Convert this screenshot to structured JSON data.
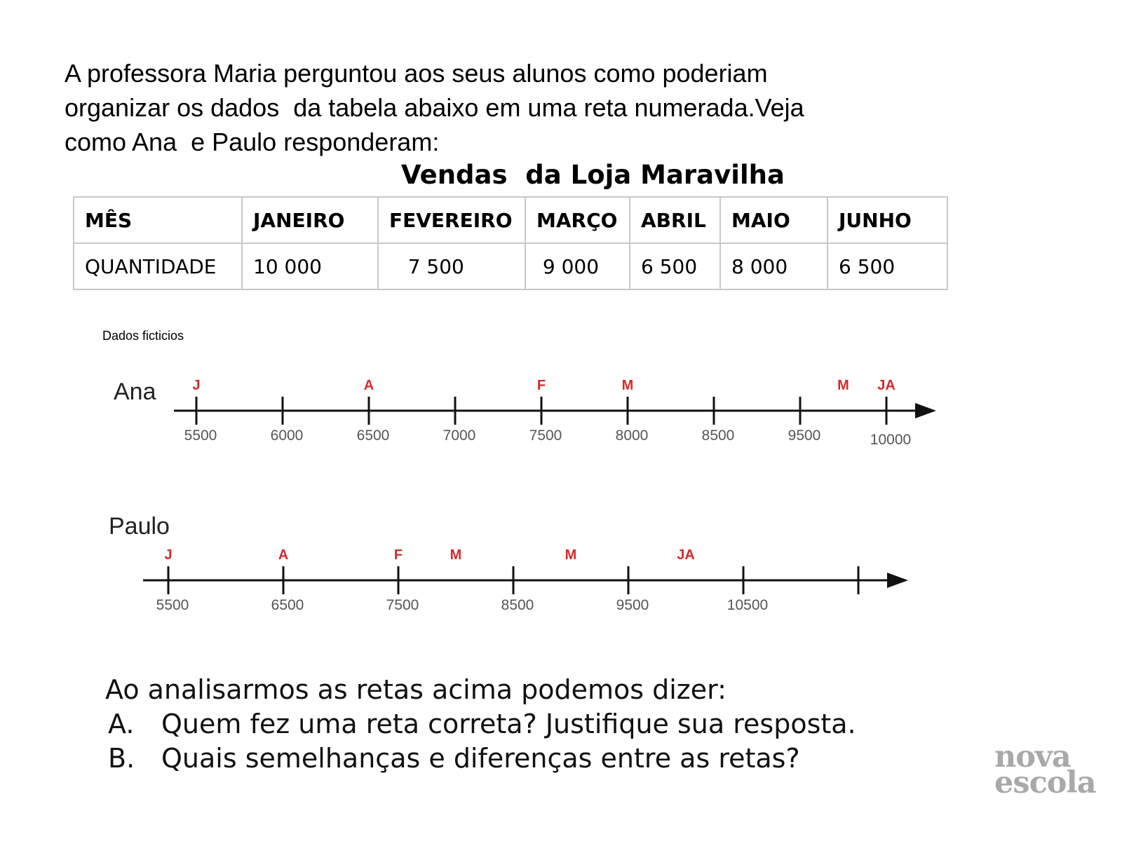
{
  "intro": {
    "lines": [
      "A professora Maria perguntou aos seus alunos como poderiam",
      "organizar os dados  da tabela abaixo em uma reta numerada.Veja",
      "como Ana  e Paulo responderam:"
    ]
  },
  "table": {
    "title": "Vendas  da Loja Maravilha",
    "header": [
      "MÊS",
      "JANEIRO",
      "FEVEREIRO",
      "MARÇO",
      "ABRIL",
      "MAIO",
      "JUNHO"
    ],
    "row": [
      "QUANTIDADE",
      "10 000",
      "   7 500",
      " 9 000",
      "6 500",
      "8 000",
      "6 500"
    ]
  },
  "note": "Dados ficticios",
  "ana": {
    "name": "Ana",
    "ticks": [
      "5500",
      "6000",
      "6500",
      "7000",
      "7500",
      "8000",
      "8500",
      "9500",
      "10000"
    ],
    "markers": [
      {
        "label": "J",
        "tick": 0
      },
      {
        "label": "A",
        "tick": 2
      },
      {
        "label": "F",
        "tick": 4
      },
      {
        "label": "M",
        "tick": 5
      },
      {
        "label": "M",
        "tick": 7.5
      },
      {
        "label": "JA",
        "tick": 8
      }
    ]
  },
  "paulo": {
    "name": "Paulo",
    "ticks": [
      "5500",
      "6500",
      "7500",
      "8500",
      "9500",
      "10500",
      ""
    ],
    "markers": [
      {
        "label": "J",
        "tick": 0
      },
      {
        "label": "A",
        "tick": 1
      },
      {
        "label": "F",
        "tick": 2
      },
      {
        "label": "M",
        "tick": 2.5
      },
      {
        "label": "M",
        "tick": 3.5
      },
      {
        "label": "JA",
        "tick": 4.5
      }
    ]
  },
  "questions": {
    "intro": "Ao analisarmos as retas acima podemos dizer:",
    "items": [
      {
        "letter": "A.",
        "text": "Quem fez uma reta correta? Justifique sua resposta."
      },
      {
        "letter": "B.",
        "text": "Quais semelhanças e diferenças entre as retas?"
      }
    ]
  },
  "logo": {
    "line1": "nova",
    "line2": "escola"
  },
  "colors": {
    "marker": "#d42a2a",
    "line": "#111111",
    "tick_label": "#555555"
  }
}
